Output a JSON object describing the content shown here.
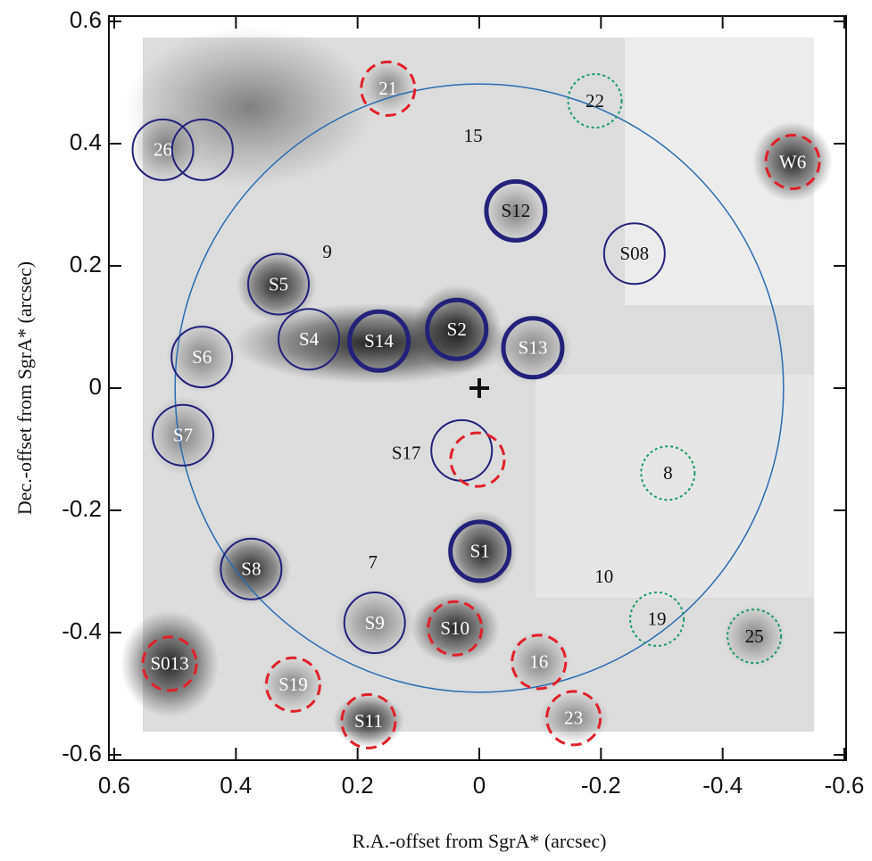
{
  "chart_data": {
    "type": "sky-map",
    "xlabel": "R.A.-offset from SgrA* (arcsec)",
    "ylabel": "Dec.-offset from SgrA* (arcsec)",
    "xlim": [
      0.6,
      -0.6
    ],
    "ylim": [
      -0.6,
      0.6
    ],
    "xticks": [
      0.6,
      0.4,
      0.2,
      0,
      -0.2,
      -0.4,
      -0.6
    ],
    "yticks": [
      -0.6,
      -0.4,
      -0.2,
      0,
      0.2,
      0.4,
      0.6
    ],
    "field_circle": {
      "x": 0,
      "y": 0,
      "r": 0.5,
      "color": "#2b6cb0"
    },
    "origin_marker": {
      "x": 0,
      "y": 0
    },
    "circle_groups": [
      {
        "color": "#22227a",
        "dash": "solid",
        "width": 2,
        "points": [
          {
            "label": "26",
            "x": 0.52,
            "y": 0.39,
            "text_color": "#ffffff"
          },
          {
            "x": 0.455,
            "y": 0.39
          },
          {
            "label": "S08",
            "x": -0.255,
            "y": 0.22,
            "text_color": "#111111"
          },
          {
            "label": "S5",
            "x": 0.33,
            "y": 0.17,
            "text_color": "#ffffff"
          },
          {
            "label": "S4",
            "x": 0.28,
            "y": 0.08,
            "text_color": "#ffffff"
          },
          {
            "label": "S6",
            "x": 0.456,
            "y": 0.051,
            "text_color": "#ffffff"
          },
          {
            "label": "S7",
            "x": 0.487,
            "y": -0.077,
            "text_color": "#ffffff"
          },
          {
            "x": 0.029,
            "y": -0.102
          },
          {
            "label": "S8",
            "x": 0.375,
            "y": -0.296,
            "text_color": "#ffffff"
          },
          {
            "label": "S9",
            "x": 0.172,
            "y": -0.384,
            "text_color": "#ffffff"
          }
        ]
      },
      {
        "color": "#22227a",
        "dash": "solid",
        "width": 5,
        "points": [
          {
            "label": "S12",
            "x": -0.06,
            "y": 0.29,
            "text_color": "#111111"
          },
          {
            "label": "S14",
            "x": 0.165,
            "y": 0.077,
            "text_color": "#ffffff"
          },
          {
            "label": "S2",
            "x": 0.037,
            "y": 0.096,
            "text_color": "#ffffff"
          },
          {
            "label": "S13",
            "x": -0.088,
            "y": 0.066,
            "text_color": "#ffffff"
          },
          {
            "label": "S1",
            "x": -0.001,
            "y": -0.267,
            "text_color": "#ffffff"
          }
        ]
      },
      {
        "color": "#e0202a",
        "dash": "dashed",
        "width": 3,
        "points": [
          {
            "label": "21",
            "x": 0.15,
            "y": 0.49,
            "text_color": "#ffffff"
          },
          {
            "label": "W6",
            "x": -0.515,
            "y": 0.37,
            "text_color": "#ffffff"
          },
          {
            "x": 0.003,
            "y": -0.117
          },
          {
            "label": "S10",
            "x": 0.04,
            "y": -0.393,
            "text_color": "#ffffff"
          },
          {
            "label": "16",
            "x": -0.098,
            "y": -0.448,
            "text_color": "#ffffff"
          },
          {
            "label": "S013",
            "x": 0.509,
            "y": -0.451,
            "text_color": "#ffffff"
          },
          {
            "label": "S19",
            "x": 0.306,
            "y": -0.485,
            "text_color": "#ffffff"
          },
          {
            "label": "S11",
            "x": 0.182,
            "y": -0.545,
            "text_color": "#ffffff"
          },
          {
            "label": "23",
            "x": -0.155,
            "y": -0.54,
            "text_color": "#ffffff"
          }
        ]
      },
      {
        "color": "#1a9a6a",
        "dash": "dotted",
        "width": 2,
        "points": [
          {
            "label": "22",
            "x": -0.19,
            "y": 0.47,
            "text_color": "#111111"
          },
          {
            "label": "8",
            "x": -0.31,
            "y": -0.139,
            "text_color": "#111111"
          },
          {
            "label": "19",
            "x": -0.292,
            "y": -0.378,
            "text_color": "#111111"
          },
          {
            "label": "25",
            "x": -0.452,
            "y": -0.406,
            "text_color": "#111111"
          }
        ]
      }
    ],
    "text_labels": [
      {
        "label": "15",
        "x": 0.01,
        "y": 0.41
      },
      {
        "label": "9",
        "x": 0.25,
        "y": 0.22
      },
      {
        "label": "S17",
        "x": 0.12,
        "y": -0.109
      },
      {
        "label": "7",
        "x": 0.175,
        "y": -0.288
      },
      {
        "label": "10",
        "x": -0.205,
        "y": -0.311
      }
    ]
  }
}
